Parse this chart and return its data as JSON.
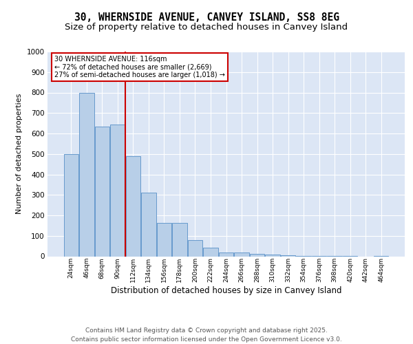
{
  "title_line1": "30, WHERNSIDE AVENUE, CANVEY ISLAND, SS8 8EG",
  "title_line2": "Size of property relative to detached houses in Canvey Island",
  "xlabel": "Distribution of detached houses by size in Canvey Island",
  "ylabel": "Number of detached properties",
  "categories": [
    "24sqm",
    "46sqm",
    "68sqm",
    "90sqm",
    "112sqm",
    "134sqm",
    "156sqm",
    "178sqm",
    "200sqm",
    "222sqm",
    "244sqm",
    "266sqm",
    "288sqm",
    "310sqm",
    "332sqm",
    "354sqm",
    "376sqm",
    "398sqm",
    "420sqm",
    "442sqm",
    "464sqm"
  ],
  "values": [
    500,
    800,
    635,
    645,
    490,
    310,
    163,
    163,
    80,
    42,
    20,
    20,
    13,
    7,
    4,
    2,
    2,
    1,
    1,
    0,
    1
  ],
  "bar_color": "#b8cfe8",
  "bar_edge_color": "#6699cc",
  "bar_linewidth": 0.7,
  "vline_x_index": 4,
  "vline_color": "#cc0000",
  "annotation_text": "30 WHERNSIDE AVENUE: 116sqm\n← 72% of detached houses are smaller (2,669)\n27% of semi-detached houses are larger (1,018) →",
  "annotation_box_edgecolor": "#cc0000",
  "annotation_box_facecolor": "#ffffff",
  "ylim": [
    0,
    1000
  ],
  "yticks": [
    0,
    100,
    200,
    300,
    400,
    500,
    600,
    700,
    800,
    900,
    1000
  ],
  "axes_facecolor": "#dce6f5",
  "fig_facecolor": "#ffffff",
  "grid_color": "#ffffff",
  "title_fontsize": 10.5,
  "subtitle_fontsize": 9.5,
  "footer_text": "Contains HM Land Registry data © Crown copyright and database right 2025.\nContains public sector information licensed under the Open Government Licence v3.0.",
  "footer_fontsize": 6.5,
  "ylabel_fontsize": 8,
  "xlabel_fontsize": 8.5,
  "tick_fontsize": 6.5,
  "ytick_fontsize": 7.5
}
